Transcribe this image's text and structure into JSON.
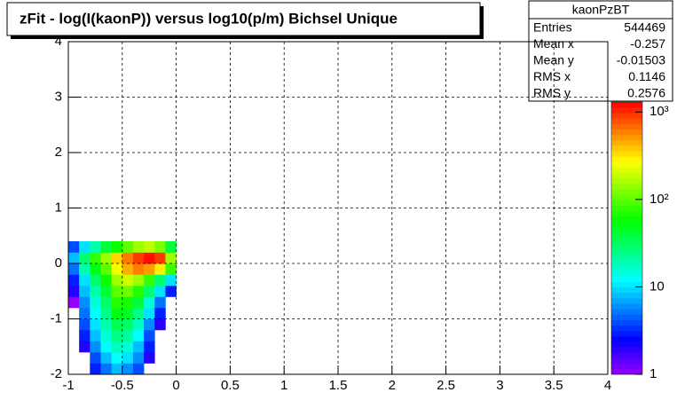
{
  "chart_data": {
    "type": "heatmap",
    "title": "zFit - log(I(kaonP)) versus log10(p/m) Bichsel Unique",
    "xbins": [
      -1,
      -0.9,
      -0.8,
      -0.7,
      -0.6,
      -0.5,
      -0.4,
      -0.3,
      -0.2,
      -0.1,
      0
    ],
    "ybins": [
      -2,
      -1.8,
      -1.6,
      -1.4,
      -1.2,
      -1,
      -0.8,
      -0.6,
      -0.4,
      -0.2,
      0,
      0.2,
      0.4
    ],
    "z": [
      [
        null,
        null,
        3,
        5,
        8,
        6,
        4,
        null,
        null,
        null
      ],
      [
        null,
        null,
        4,
        8,
        12,
        10,
        6,
        2,
        null,
        null
      ],
      [
        null,
        2,
        6,
        12,
        18,
        15,
        8,
        3,
        null,
        null
      ],
      [
        null,
        3,
        8,
        15,
        25,
        22,
        12,
        4,
        null,
        null
      ],
      [
        null,
        4,
        10,
        20,
        35,
        30,
        18,
        6,
        2,
        null
      ],
      [
        null,
        5,
        12,
        25,
        50,
        45,
        25,
        10,
        3,
        null
      ],
      [
        1,
        6,
        15,
        30,
        70,
        65,
        40,
        15,
        5,
        null
      ],
      [
        2,
        8,
        20,
        40,
        100,
        110,
        70,
        30,
        10,
        3
      ],
      [
        3,
        10,
        30,
        60,
        150,
        200,
        150,
        80,
        30,
        10
      ],
      [
        5,
        20,
        50,
        100,
        250,
        450,
        600,
        500,
        300,
        80
      ],
      [
        8,
        30,
        80,
        150,
        350,
        600,
        900,
        1200,
        900,
        150
      ],
      [
        4,
        10,
        20,
        40,
        60,
        100,
        150,
        180,
        120,
        40
      ]
    ],
    "xlim": [
      -1,
      4
    ],
    "xticks": [
      -1,
      -0.5,
      0,
      0.5,
      1,
      1.5,
      2,
      2.5,
      3,
      3.5,
      4
    ],
    "ylim": [
      -2,
      4
    ],
    "yticks": [
      -2,
      -1,
      0,
      1,
      2,
      3,
      4
    ],
    "zlim": [
      1,
      1300
    ],
    "logz": true,
    "colormap": "rainbow",
    "zticks": [
      1,
      10,
      {
        "value": 100,
        "label": "10²"
      },
      {
        "value": 1000,
        "label": "10³"
      }
    ],
    "grid": true,
    "stats": {
      "title": "kaonPzBT",
      "rows": [
        [
          "Entries",
          544469
        ],
        [
          "Mean x",
          -0.257
        ],
        [
          "Mean y",
          -0.01503
        ],
        [
          "RMS x",
          0.1146
        ],
        [
          "RMS y",
          0.2576
        ]
      ]
    }
  }
}
